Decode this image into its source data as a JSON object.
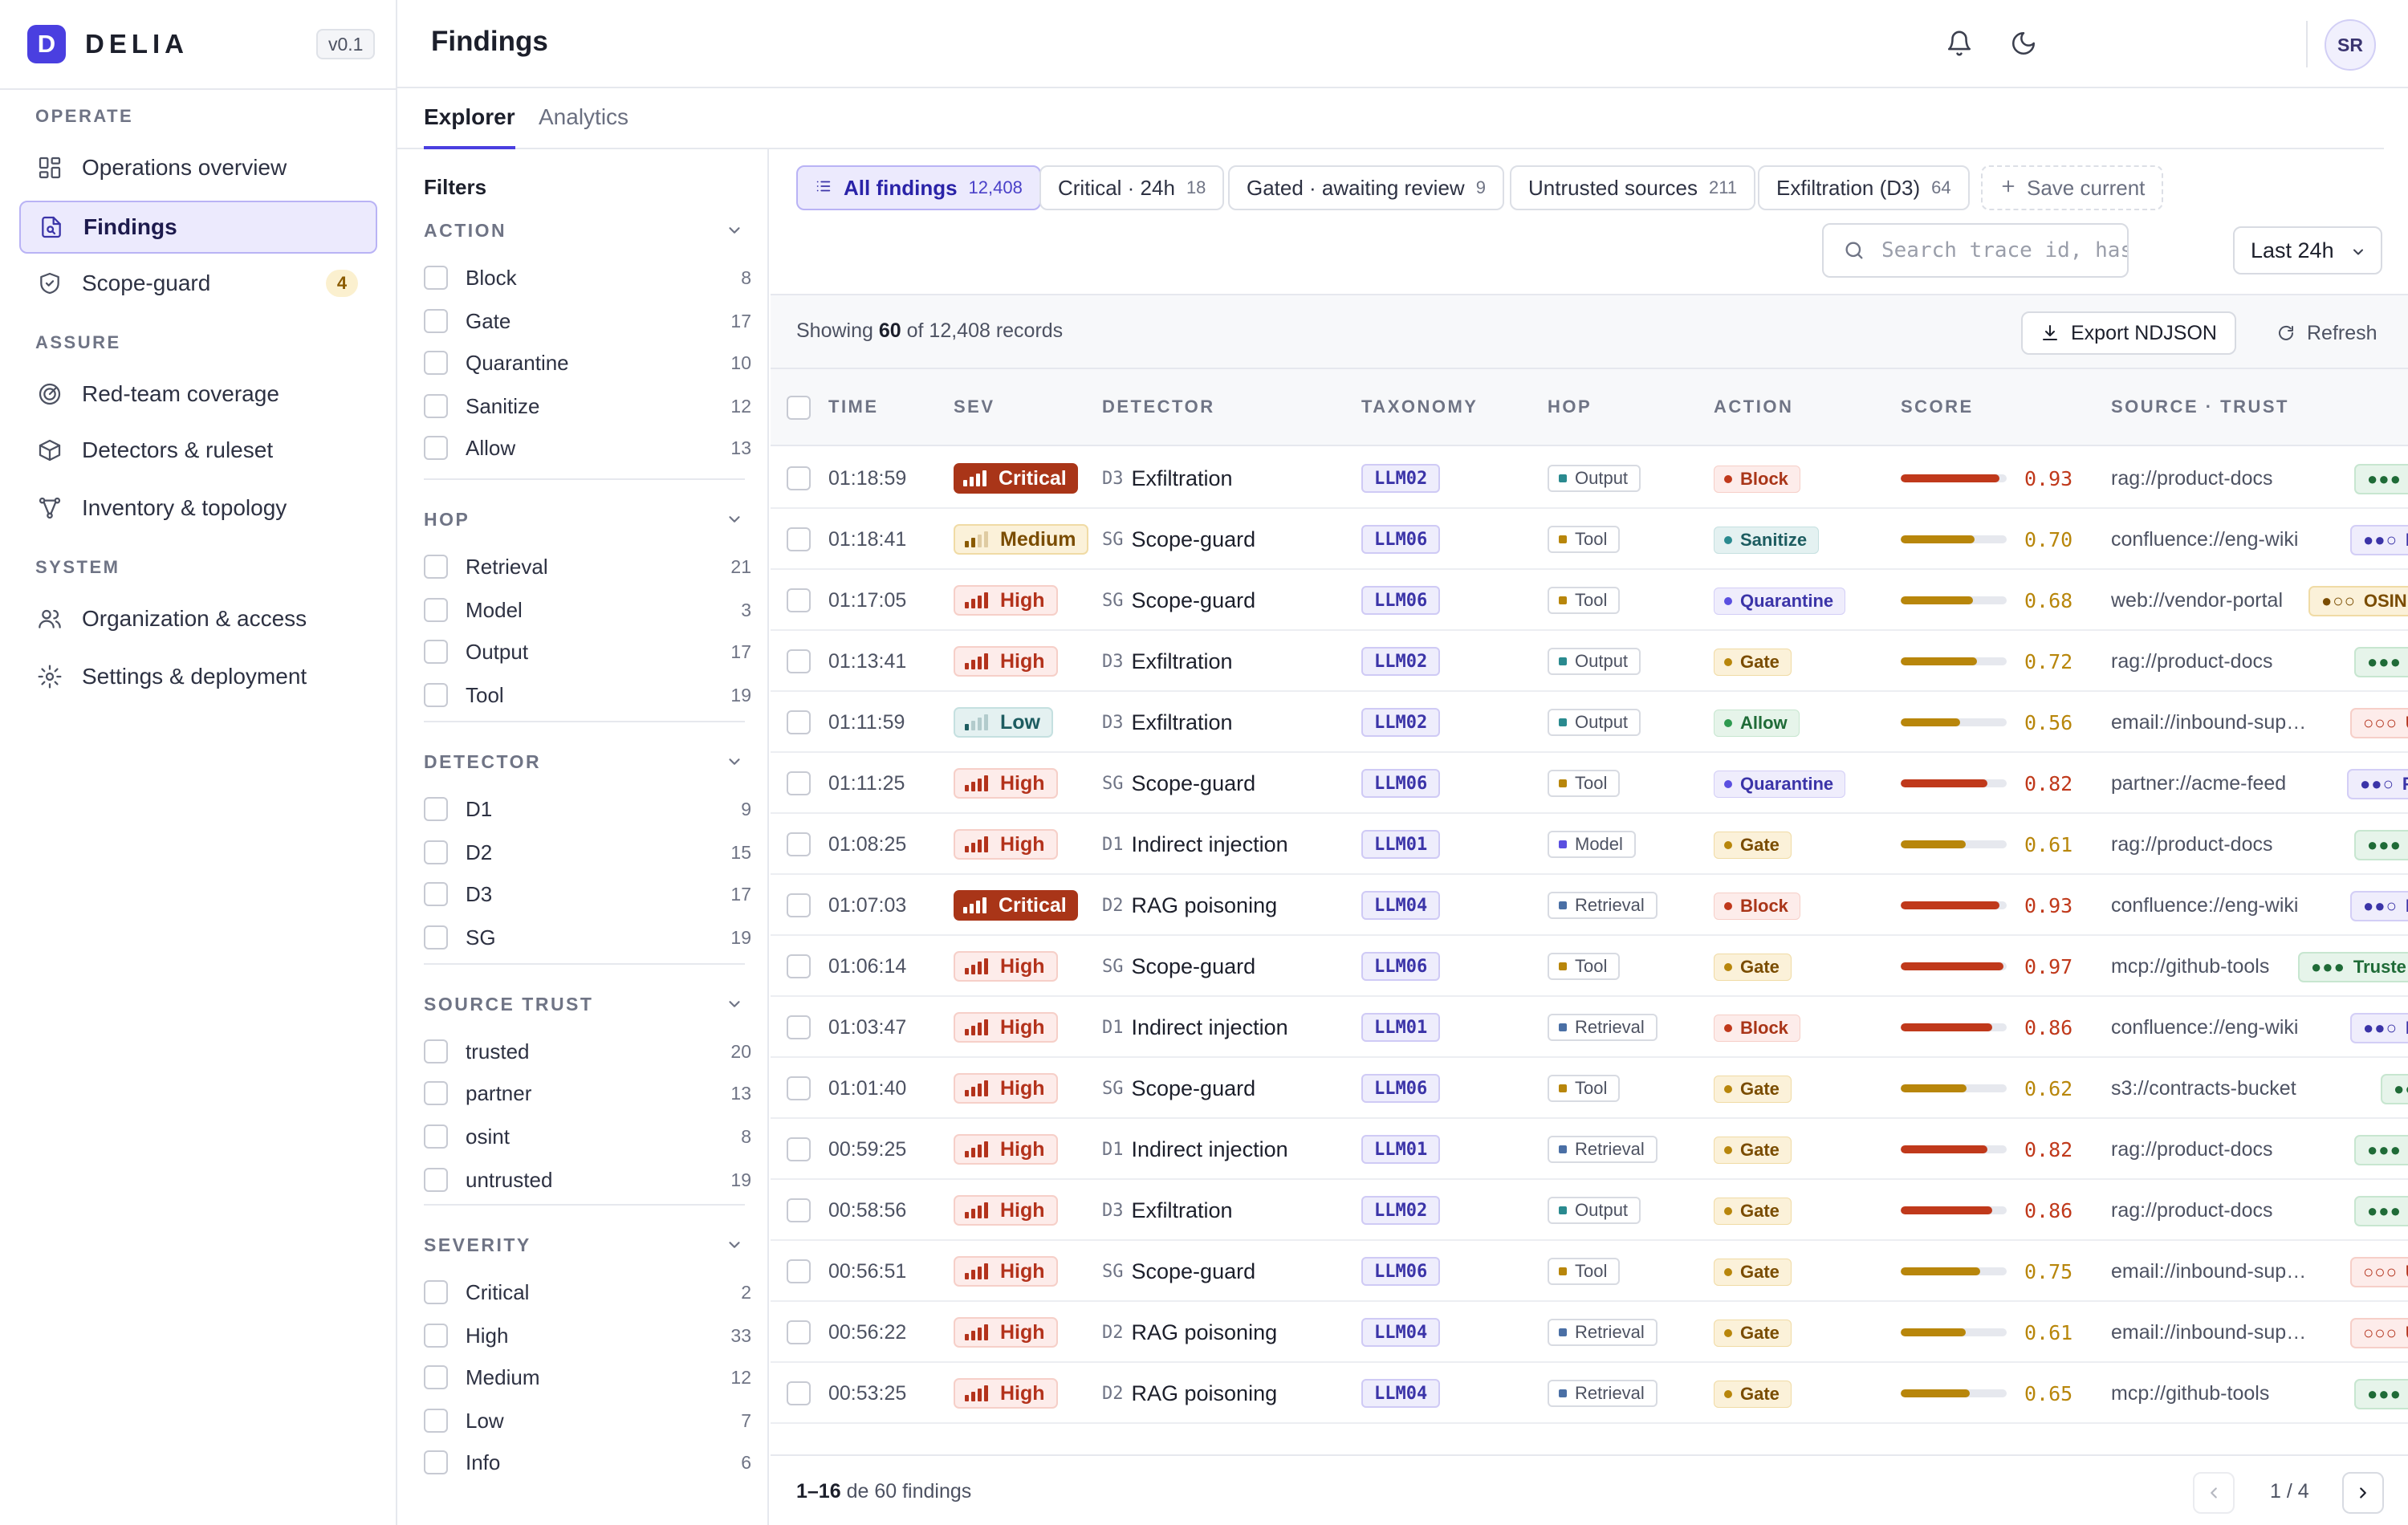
{
  "brand": {
    "logo_letter": "D",
    "name": "DELIA",
    "version": "v0.1"
  },
  "sidebar": {
    "sections": [
      {
        "label": "OPERATE",
        "items": [
          {
            "label": "Operations overview",
            "icon": "grid-icon"
          },
          {
            "label": "Findings",
            "icon": "document-search-icon",
            "active": true
          },
          {
            "label": "Scope-guard",
            "icon": "shield-check-icon",
            "count": "4"
          }
        ]
      },
      {
        "label": "ASSURE",
        "items": [
          {
            "label": "Red-team coverage",
            "icon": "target-icon"
          },
          {
            "label": "Detectors & ruleset",
            "icon": "cube-icon"
          },
          {
            "label": "Inventory & topology",
            "icon": "topology-icon"
          }
        ]
      },
      {
        "label": "SYSTEM",
        "items": [
          {
            "label": "Organization & access",
            "icon": "users-icon"
          },
          {
            "label": "Settings & deployment",
            "icon": "gear-icon"
          }
        ]
      }
    ]
  },
  "header": {
    "title": "Findings",
    "avatar": "SR"
  },
  "tabs": [
    {
      "label": "Explorer",
      "active": true
    },
    {
      "label": "Analytics"
    }
  ],
  "filters": {
    "title": "Filters",
    "groups": [
      {
        "label": "ACTION",
        "options": [
          {
            "label": "Block",
            "count": "8"
          },
          {
            "label": "Gate",
            "count": "17"
          },
          {
            "label": "Quarantine",
            "count": "10"
          },
          {
            "label": "Sanitize",
            "count": "12"
          },
          {
            "label": "Allow",
            "count": "13"
          }
        ]
      },
      {
        "label": "HOP",
        "options": [
          {
            "label": "Retrieval",
            "count": "21"
          },
          {
            "label": "Model",
            "count": "3"
          },
          {
            "label": "Output",
            "count": "17"
          },
          {
            "label": "Tool",
            "count": "19"
          }
        ]
      },
      {
        "label": "DETECTOR",
        "options": [
          {
            "label": "D1",
            "count": "9"
          },
          {
            "label": "D2",
            "count": "15"
          },
          {
            "label": "D3",
            "count": "17"
          },
          {
            "label": "SG",
            "count": "19"
          }
        ]
      },
      {
        "label": "SOURCE TRUST",
        "options": [
          {
            "label": "trusted",
            "count": "20"
          },
          {
            "label": "partner",
            "count": "13"
          },
          {
            "label": "osint",
            "count": "8"
          },
          {
            "label": "untrusted",
            "count": "19"
          }
        ]
      },
      {
        "label": "SEVERITY",
        "options": [
          {
            "label": "Critical",
            "count": "2"
          },
          {
            "label": "High",
            "count": "33"
          },
          {
            "label": "Medium",
            "count": "12"
          },
          {
            "label": "Low",
            "count": "7"
          },
          {
            "label": "Info",
            "count": "6"
          }
        ]
      }
    ]
  },
  "views": [
    {
      "label": "All findings",
      "count": "12,408",
      "active": true
    },
    {
      "label": "Critical · 24h",
      "count": "18"
    },
    {
      "label": "Gated · awaiting review",
      "count": "9"
    },
    {
      "label": "Untrusted sources",
      "count": "211"
    },
    {
      "label": "Exfiltration (D3)",
      "count": "64"
    },
    {
      "label": "Save current",
      "dashed": true
    }
  ],
  "search": {
    "placeholder": "Search trace id, hash, detector…"
  },
  "time_range": "Last 24h",
  "toolbar": {
    "showing_prefix": "Showing ",
    "showing_count": "60",
    "showing_suffix": " of 12,408 records",
    "export_label": "Export NDJSON",
    "refresh_label": "Refresh"
  },
  "table": {
    "columns": [
      "TIME",
      "SEV",
      "DETECTOR",
      "TAXONOMY",
      "HOP",
      "ACTION",
      "SCORE",
      "SOURCE · TRUST"
    ],
    "rows": [
      {
        "time": "01:18:59",
        "sev": "Critical",
        "det_code": "D3",
        "detector": "Exfiltration",
        "tax": "LLM02",
        "hop": "Output",
        "action": "Block",
        "score": "0.93",
        "source": "rag://product-docs",
        "trust": "Truste",
        "trust_level": "trusted"
      },
      {
        "time": "01:18:41",
        "sev": "Medium",
        "det_code": "SG",
        "detector": "Scope-guard",
        "tax": "LLM06",
        "hop": "Tool",
        "action": "Sanitize",
        "score": "0.70",
        "source": "confluence://eng-wiki",
        "trust": "Part",
        "trust_level": "partner"
      },
      {
        "time": "01:17:05",
        "sev": "High",
        "det_code": "SG",
        "detector": "Scope-guard",
        "tax": "LLM06",
        "hop": "Tool",
        "action": "Quarantine",
        "score": "0.68",
        "source": "web://vendor-portal",
        "trust": "OSIN",
        "trust_level": "osint"
      },
      {
        "time": "01:13:41",
        "sev": "High",
        "det_code": "D3",
        "detector": "Exfiltration",
        "tax": "LLM02",
        "hop": "Output",
        "action": "Gate",
        "score": "0.72",
        "source": "rag://product-docs",
        "trust": "Truste",
        "trust_level": "trusted"
      },
      {
        "time": "01:11:59",
        "sev": "Low",
        "det_code": "D3",
        "detector": "Exfiltration",
        "tax": "LLM02",
        "hop": "Output",
        "action": "Allow",
        "score": "0.56",
        "source": "email://inbound-sup…",
        "trust": "Unt",
        "trust_level": "untrusted"
      },
      {
        "time": "01:11:25",
        "sev": "High",
        "det_code": "SG",
        "detector": "Scope-guard",
        "tax": "LLM06",
        "hop": "Tool",
        "action": "Quarantine",
        "score": "0.82",
        "source": "partner://acme-feed",
        "trust": "Part",
        "trust_level": "partner"
      },
      {
        "time": "01:08:25",
        "sev": "High",
        "det_code": "D1",
        "detector": "Indirect injection",
        "tax": "LLM01",
        "hop": "Model",
        "action": "Gate",
        "score": "0.61",
        "source": "rag://product-docs",
        "trust": "Truste",
        "trust_level": "trusted"
      },
      {
        "time": "01:07:03",
        "sev": "Critical",
        "det_code": "D2",
        "detector": "RAG poisoning",
        "tax": "LLM04",
        "hop": "Retrieval",
        "action": "Block",
        "score": "0.93",
        "source": "confluence://eng-wiki",
        "trust": "Part",
        "trust_level": "partner"
      },
      {
        "time": "01:06:14",
        "sev": "High",
        "det_code": "SG",
        "detector": "Scope-guard",
        "tax": "LLM06",
        "hop": "Tool",
        "action": "Gate",
        "score": "0.97",
        "source": "mcp://github-tools",
        "trust": "Truste",
        "trust_level": "trusted"
      },
      {
        "time": "01:03:47",
        "sev": "High",
        "det_code": "D1",
        "detector": "Indirect injection",
        "tax": "LLM01",
        "hop": "Retrieval",
        "action": "Block",
        "score": "0.86",
        "source": "confluence://eng-wiki",
        "trust": "Part",
        "trust_level": "partner"
      },
      {
        "time": "01:01:40",
        "sev": "High",
        "det_code": "SG",
        "detector": "Scope-guard",
        "tax": "LLM06",
        "hop": "Tool",
        "action": "Gate",
        "score": "0.62",
        "source": "s3://contracts-bucket",
        "trust": "Tru",
        "trust_level": "trusted"
      },
      {
        "time": "00:59:25",
        "sev": "High",
        "det_code": "D1",
        "detector": "Indirect injection",
        "tax": "LLM01",
        "hop": "Retrieval",
        "action": "Gate",
        "score": "0.82",
        "source": "rag://product-docs",
        "trust": "Truste",
        "trust_level": "trusted"
      },
      {
        "time": "00:58:56",
        "sev": "High",
        "det_code": "D3",
        "detector": "Exfiltration",
        "tax": "LLM02",
        "hop": "Output",
        "action": "Gate",
        "score": "0.86",
        "source": "rag://product-docs",
        "trust": "Truste",
        "trust_level": "trusted"
      },
      {
        "time": "00:56:51",
        "sev": "High",
        "det_code": "SG",
        "detector": "Scope-guard",
        "tax": "LLM06",
        "hop": "Tool",
        "action": "Gate",
        "score": "0.75",
        "source": "email://inbound-sup…",
        "trust": "Unt",
        "trust_level": "untrusted"
      },
      {
        "time": "00:56:22",
        "sev": "High",
        "det_code": "D2",
        "detector": "RAG poisoning",
        "tax": "LLM04",
        "hop": "Retrieval",
        "action": "Gate",
        "score": "0.61",
        "source": "email://inbound-sup…",
        "trust": "Unt",
        "trust_level": "untrusted"
      },
      {
        "time": "00:53:25",
        "sev": "High",
        "det_code": "D2",
        "detector": "RAG poisoning",
        "tax": "LLM04",
        "hop": "Retrieval",
        "action": "Gate",
        "score": "0.65",
        "source": "mcp://github-tools",
        "trust": "Truste",
        "trust_level": "trusted"
      }
    ]
  },
  "pagination": {
    "range": "1–16",
    "suffix": " de 60 findings",
    "page": "1 / 4"
  },
  "colors": {
    "accent": "#4a3fe0",
    "critical": "#a93518",
    "high": "#c0391b",
    "gate": "#b8860b"
  }
}
